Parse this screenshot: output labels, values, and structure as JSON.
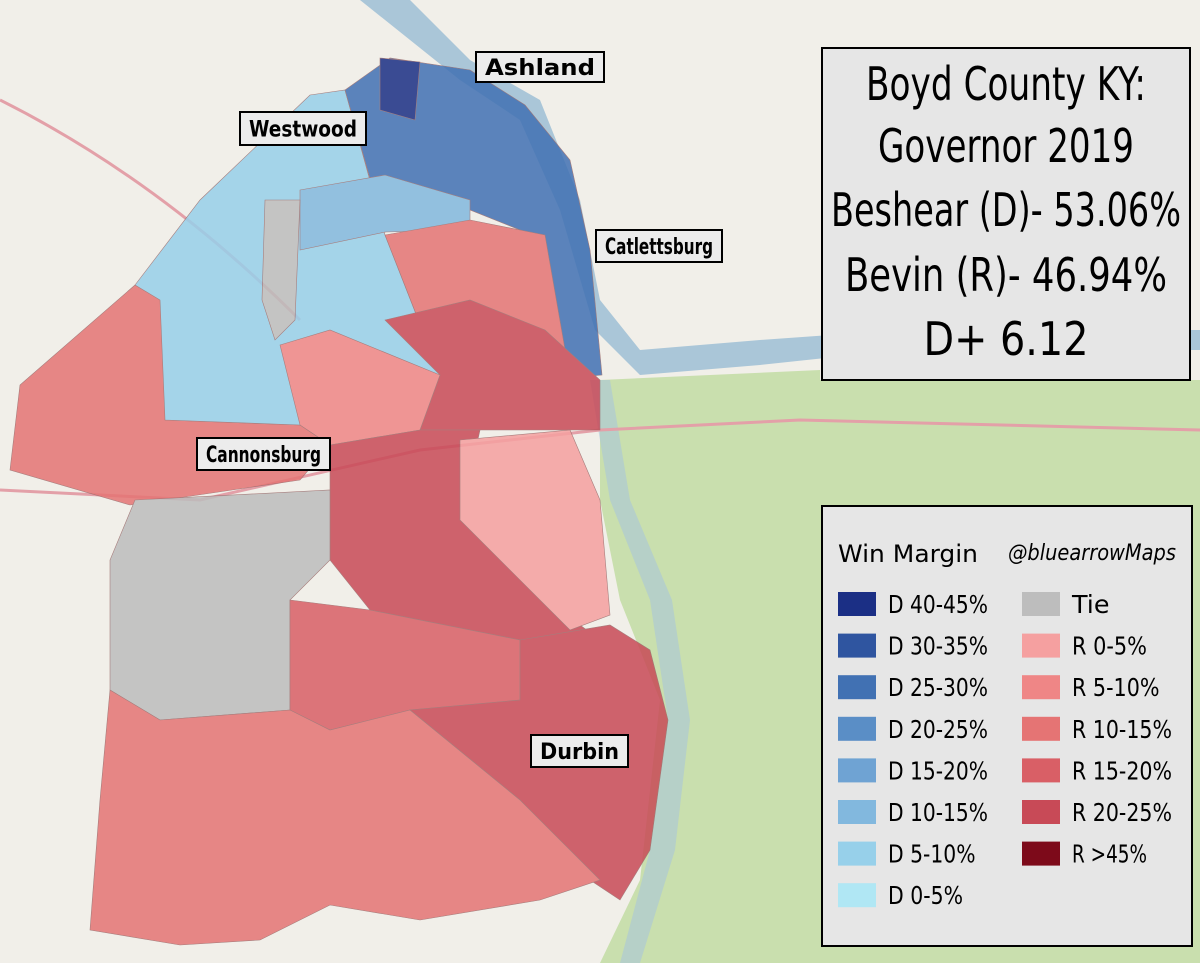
{
  "title": {
    "lines": [
      "Boyd County KY:",
      "Governor 2019",
      "Beshear (D)- 53.06%",
      "Bevin (R)- 46.94%",
      "D+ 6.12"
    ]
  },
  "places": [
    {
      "label": "Ashland"
    },
    {
      "label": "Westwood"
    },
    {
      "label": "Catlettsburg"
    },
    {
      "label": "Cannonsburg"
    },
    {
      "label": "Durbin"
    }
  ],
  "legend": {
    "title": "Win Margin",
    "credit": "@bluearrowMaps",
    "columns": [
      [
        {
          "label": "D 40-45%",
          "color": "#1b2f85"
        },
        {
          "label": "D 30-35%",
          "color": "#2f55a0"
        },
        {
          "label": "D 25-30%",
          "color": "#4171b3"
        },
        {
          "label": "D 20-25%",
          "color": "#5a8ec6"
        },
        {
          "label": "D 15-20%",
          "color": "#6fa3d3"
        },
        {
          "label": "D 10-15%",
          "color": "#82b8de"
        },
        {
          "label": "D 5-10%",
          "color": "#97d0ea"
        },
        {
          "label": "D 0-5%",
          "color": "#b0e7f4"
        }
      ],
      [
        {
          "label": "Tie",
          "color": "#bdbdbd"
        },
        {
          "label": "R 0-5%",
          "color": "#f5a0a0"
        },
        {
          "label": "R 5-10%",
          "color": "#ef8686"
        },
        {
          "label": "R 10-15%",
          "color": "#e57474"
        },
        {
          "label": "R 15-20%",
          "color": "#d95f66"
        },
        {
          "label": "R 20-25%",
          "color": "#c84a57"
        },
        {
          "label": "R >45%",
          "color": "#7d0a1a"
        }
      ]
    ]
  }
}
